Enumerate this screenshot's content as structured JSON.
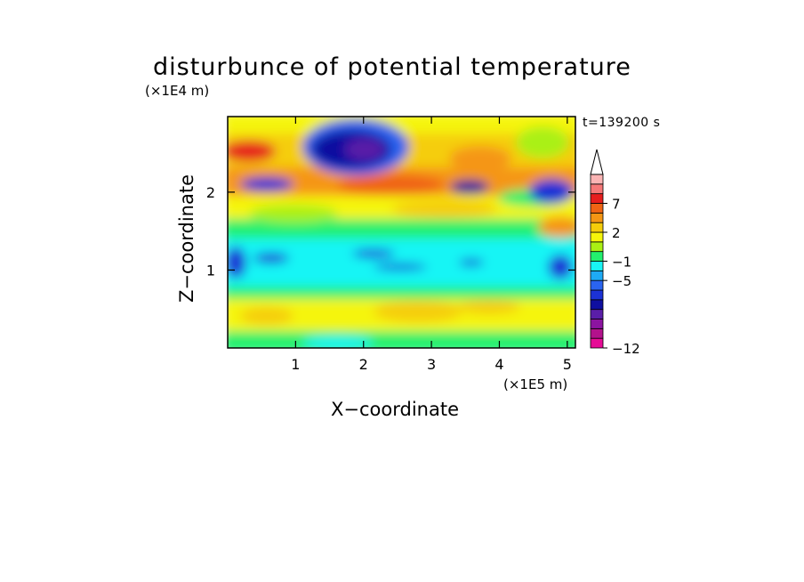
{
  "chart_data": {
    "type": "heatmap",
    "title": "disturbunce of potential temperature",
    "time_label": "t=139200 s",
    "xlabel": "X−coordinate",
    "ylabel": "Z−coordinate",
    "x_unit": "(×1E5 m)",
    "y_unit": "(×1E4 m)",
    "x_ticks": [
      {
        "v": 1,
        "label": "1"
      },
      {
        "v": 2,
        "label": "2"
      },
      {
        "v": 3,
        "label": "3"
      },
      {
        "v": 4,
        "label": "4"
      },
      {
        "v": 5,
        "label": "5"
      }
    ],
    "y_ticks": [
      {
        "v": 1,
        "label": "1"
      },
      {
        "v": 2,
        "label": "2"
      }
    ],
    "xlim": [
      0,
      5.12
    ],
    "ylim": [
      0,
      2.97
    ],
    "colorbar": {
      "levels_colors": [
        "#e60b96",
        "#b3128c",
        "#8c14a0",
        "#5a1ea8",
        "#0f0fa0",
        "#1c32d6",
        "#2a64f0",
        "#1eaaf5",
        "#19f5f5",
        "#23f06e",
        "#aaf014",
        "#f5f50a",
        "#f5cd0a",
        "#f59614",
        "#f06414",
        "#e61e1e",
        "#f57878",
        "#fab4b4",
        "#ffffff"
      ],
      "labels": [
        {
          "v": -12,
          "label": "−12"
        },
        {
          "v": -5,
          "label": "−5"
        },
        {
          "v": -1,
          "label": "−1"
        },
        {
          "v": 2,
          "label": "2"
        },
        {
          "v": 7,
          "label": "7"
        }
      ]
    }
  }
}
